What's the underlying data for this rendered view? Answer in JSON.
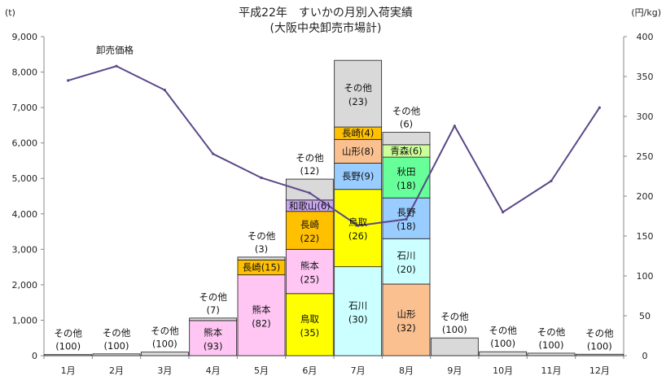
{
  "chart_data": {
    "type": "bar",
    "title": "平成22年　すいかの月別入荷実績",
    "subtitle": "(大阪中央卸売市場計)",
    "y_left_unit": "(t)",
    "y_right_unit": "(円/kg)",
    "ylim": [
      0,
      9000
    ],
    "y2lim": [
      0,
      400
    ],
    "yticks": [
      0,
      1000,
      2000,
      3000,
      4000,
      5000,
      6000,
      7000,
      8000,
      9000
    ],
    "yticks_labels": [
      "0",
      "1,000",
      "2,000",
      "3,000",
      "4,000",
      "5,000",
      "6,000",
      "7,000",
      "8,000",
      "9,000"
    ],
    "y2ticks": [
      0,
      50,
      100,
      150,
      200,
      250,
      300,
      350,
      400
    ],
    "categories": [
      "1月",
      "2月",
      "3月",
      "4月",
      "5月",
      "6月",
      "7月",
      "8月",
      "9月",
      "10月",
      "11月",
      "12月"
    ],
    "colors": {
      "その他": "#d9d9d9",
      "熊本": "#ffc6f4",
      "長崎": "#ffc000",
      "鳥取": "#ffff00",
      "和歌山": "#c9a6f0",
      "石川": "#ccffff",
      "長野": "#99ccff",
      "山形": "#fac090",
      "秋田": "#66ff99",
      "青森": "#ccff99",
      "line": "#5b4888",
      "outline": "#1a1a1a"
    },
    "bars": [
      {
        "month": "1月",
        "total": 30,
        "segments": [
          {
            "name": "その他",
            "share": "(100)",
            "value": 30
          }
        ]
      },
      {
        "month": "2月",
        "total": 50,
        "segments": [
          {
            "name": "その他",
            "share": "(100)",
            "value": 50
          }
        ]
      },
      {
        "month": "3月",
        "total": 100,
        "segments": [
          {
            "name": "その他",
            "share": "(100)",
            "value": 100
          }
        ]
      },
      {
        "month": "4月",
        "total": 1060,
        "segments": [
          {
            "name": "熊本",
            "share": "(93)",
            "value": 990
          },
          {
            "name": "その他",
            "share": "(7)",
            "value": 70
          }
        ]
      },
      {
        "month": "5月",
        "total": 2780,
        "segments": [
          {
            "name": "熊本",
            "share": "(82)",
            "value": 2280
          },
          {
            "name": "長崎",
            "share": "(15)",
            "value": 420
          },
          {
            "name": "その他",
            "share": "(3)",
            "value": 80
          }
        ]
      },
      {
        "month": "6月",
        "total": 4980,
        "segments": [
          {
            "name": "鳥取",
            "share": "(35)",
            "value": 1750
          },
          {
            "name": "熊本",
            "share": "(25)",
            "value": 1250
          },
          {
            "name": "長崎",
            "share": "(22)",
            "value": 1070
          },
          {
            "name": "和歌山",
            "share": "(6)",
            "value": 320
          },
          {
            "name": "その他",
            "share": "(12)",
            "value": 590
          }
        ]
      },
      {
        "month": "7月",
        "total": 8330,
        "segments": [
          {
            "name": "石川",
            "share": "(30)",
            "value": 2510
          },
          {
            "name": "鳥取",
            "share": "(26)",
            "value": 2180
          },
          {
            "name": "長野",
            "share": "(9)",
            "value": 740
          },
          {
            "name": "山形",
            "share": "(8)",
            "value": 670
          },
          {
            "name": "長崎",
            "share": "(4)",
            "value": 350
          },
          {
            "name": "その他",
            "share": "(23)",
            "value": 1880
          }
        ]
      },
      {
        "month": "8月",
        "total": 6300,
        "segments": [
          {
            "name": "山形",
            "share": "(32)",
            "value": 2020
          },
          {
            "name": "石川",
            "share": "(20)",
            "value": 1280
          },
          {
            "name": "長野",
            "share": "(18)",
            "value": 1150
          },
          {
            "name": "秋田",
            "share": "(18)",
            "value": 1150
          },
          {
            "name": "青森",
            "share": "(6)",
            "value": 350
          },
          {
            "name": "その他",
            "share": "(6)",
            "value": 350
          }
        ]
      },
      {
        "month": "9月",
        "total": 500,
        "segments": [
          {
            "name": "その他",
            "share": "(100)",
            "value": 500
          }
        ]
      },
      {
        "month": "10月",
        "total": 110,
        "segments": [
          {
            "name": "その他",
            "share": "(100)",
            "value": 110
          }
        ]
      },
      {
        "month": "11月",
        "total": 70,
        "segments": [
          {
            "name": "その他",
            "share": "(100)",
            "value": 70
          }
        ]
      },
      {
        "month": "12月",
        "total": 40,
        "segments": [
          {
            "name": "その他",
            "share": "(100)",
            "value": 40
          }
        ]
      }
    ],
    "price_series": {
      "name": "卸売価格",
      "values": [
        345,
        363,
        333,
        253,
        223,
        204,
        163,
        171,
        288,
        180,
        219,
        311
      ]
    }
  }
}
